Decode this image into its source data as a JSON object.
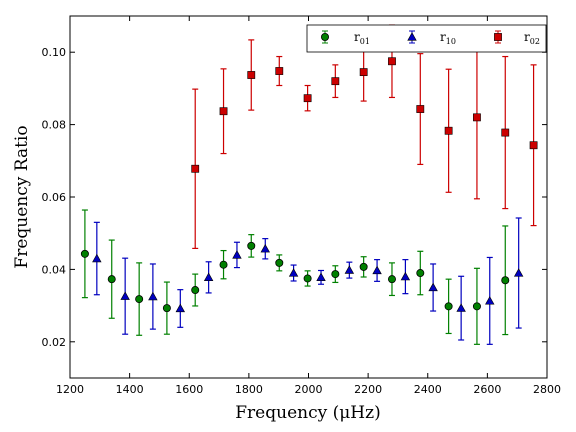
{
  "chart_data": {
    "type": "scatter",
    "xlabel": "Frequency",
    "xlabel_unit": "μHz",
    "ylabel": "Frequency Ratio",
    "xlim": [
      1200,
      2800
    ],
    "ylim": [
      0.01,
      0.11
    ],
    "xticks": [
      1200,
      1400,
      1600,
      1800,
      2000,
      2200,
      2400,
      2600,
      2800
    ],
    "yticks": [
      0.02,
      0.04,
      0.06,
      0.08,
      0.1
    ],
    "ytick_labels": [
      "0.02",
      "0.04",
      "0.06",
      "0.08",
      "0.10"
    ],
    "grid": false,
    "legend_position": "top-right",
    "series": [
      {
        "name": "r01",
        "name_base": "r",
        "name_sub": "01",
        "color": "#008000",
        "marker": "circle",
        "points": [
          {
            "x": 1250,
            "y": 0.0443,
            "err": 0.0121
          },
          {
            "x": 1340,
            "y": 0.0373,
            "err": 0.0108
          },
          {
            "x": 1432,
            "y": 0.0318,
            "err": 0.01
          },
          {
            "x": 1525,
            "y": 0.0293,
            "err": 0.0072
          },
          {
            "x": 1620,
            "y": 0.0343,
            "err": 0.0044
          },
          {
            "x": 1715,
            "y": 0.0413,
            "err": 0.0039
          },
          {
            "x": 1808,
            "y": 0.0465,
            "err": 0.0031
          },
          {
            "x": 1902,
            "y": 0.0418,
            "err": 0.0022
          },
          {
            "x": 1997,
            "y": 0.0375,
            "err": 0.0021
          },
          {
            "x": 2090,
            "y": 0.0387,
            "err": 0.0023
          },
          {
            "x": 2185,
            "y": 0.0407,
            "err": 0.0028
          },
          {
            "x": 2280,
            "y": 0.0373,
            "err": 0.0045
          },
          {
            "x": 2375,
            "y": 0.039,
            "err": 0.006
          },
          {
            "x": 2470,
            "y": 0.0298,
            "err": 0.0075
          },
          {
            "x": 2565,
            "y": 0.0298,
            "err": 0.0105
          },
          {
            "x": 2660,
            "y": 0.037,
            "err": 0.015
          }
        ]
      },
      {
        "name": "r10",
        "name_base": "r",
        "name_sub": "10",
        "color": "#0000bf",
        "marker": "triangle",
        "points": [
          {
            "x": 1290,
            "y": 0.043,
            "err": 0.01
          },
          {
            "x": 1385,
            "y": 0.0326,
            "err": 0.0105
          },
          {
            "x": 1478,
            "y": 0.0325,
            "err": 0.009
          },
          {
            "x": 1570,
            "y": 0.0292,
            "err": 0.0052
          },
          {
            "x": 1665,
            "y": 0.0378,
            "err": 0.0043
          },
          {
            "x": 1760,
            "y": 0.044,
            "err": 0.0035
          },
          {
            "x": 1855,
            "y": 0.0457,
            "err": 0.0028
          },
          {
            "x": 1950,
            "y": 0.039,
            "err": 0.0022
          },
          {
            "x": 2042,
            "y": 0.0378,
            "err": 0.0019
          },
          {
            "x": 2137,
            "y": 0.0398,
            "err": 0.0022
          },
          {
            "x": 2230,
            "y": 0.0397,
            "err": 0.003
          },
          {
            "x": 2325,
            "y": 0.038,
            "err": 0.0047
          },
          {
            "x": 2418,
            "y": 0.035,
            "err": 0.0065
          },
          {
            "x": 2512,
            "y": 0.0293,
            "err": 0.0088
          },
          {
            "x": 2608,
            "y": 0.0313,
            "err": 0.012
          },
          {
            "x": 2705,
            "y": 0.039,
            "err": 0.0152
          }
        ]
      },
      {
        "name": "r02",
        "name_base": "r",
        "name_sub": "02",
        "color": "#cc0000",
        "marker": "square",
        "points": [
          {
            "x": 1620,
            "y": 0.0678,
            "err": 0.022
          },
          {
            "x": 1715,
            "y": 0.0837,
            "err": 0.0117
          },
          {
            "x": 1808,
            "y": 0.0937,
            "err": 0.0097
          },
          {
            "x": 1902,
            "y": 0.0948,
            "err": 0.004
          },
          {
            "x": 1997,
            "y": 0.0873,
            "err": 0.0035
          },
          {
            "x": 2090,
            "y": 0.092,
            "err": 0.0045
          },
          {
            "x": 2185,
            "y": 0.0945,
            "err": 0.008
          },
          {
            "x": 2280,
            "y": 0.0975,
            "err": 0.01
          },
          {
            "x": 2375,
            "y": 0.0843,
            "err": 0.0153
          },
          {
            "x": 2470,
            "y": 0.0783,
            "err": 0.017
          },
          {
            "x": 2565,
            "y": 0.082,
            "err": 0.0225
          },
          {
            "x": 2660,
            "y": 0.0778,
            "err": 0.021
          },
          {
            "x": 2755,
            "y": 0.0743,
            "err": 0.0222
          }
        ]
      }
    ]
  }
}
